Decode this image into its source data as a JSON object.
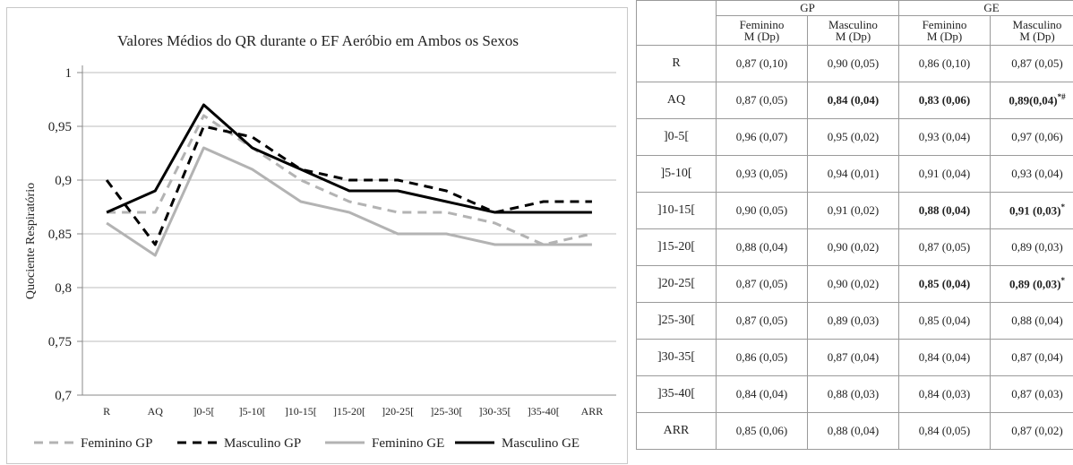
{
  "chart_data": {
    "type": "line",
    "title": "Valores Médios do QR durante o EF Aeróbio em Ambos os Sexos",
    "xlabel": "",
    "ylabel": "Quociente Respiratório",
    "categories": [
      "R",
      "AQ",
      "]0-5[",
      "]5-10[",
      "]10-15[",
      "]15-20[",
      "]20-25[",
      "]25-30[",
      "]30-35[",
      "]35-40[",
      "ARR"
    ],
    "ylim": [
      0.7,
      1
    ],
    "yticks": [
      "0,7",
      "0,75",
      "0,8",
      "0,85",
      "0,9",
      "0,95",
      "1"
    ],
    "grid": "horizontal",
    "legend_position": "bottom",
    "series": [
      {
        "name": "Feminino GP",
        "color": "#b3b3b3",
        "dash": "dashed",
        "values": [
          0.87,
          0.87,
          0.96,
          0.93,
          0.9,
          0.88,
          0.87,
          0.87,
          0.86,
          0.84,
          0.85
        ]
      },
      {
        "name": "Masculino GP",
        "color": "#000000",
        "dash": "dashed",
        "values": [
          0.9,
          0.84,
          0.95,
          0.94,
          0.91,
          0.9,
          0.9,
          0.89,
          0.87,
          0.88,
          0.88
        ]
      },
      {
        "name": "Feminino GE",
        "color": "#b3b3b3",
        "dash": "solid",
        "values": [
          0.86,
          0.83,
          0.93,
          0.91,
          0.88,
          0.87,
          0.85,
          0.85,
          0.84,
          0.84,
          0.84
        ]
      },
      {
        "name": "Masculino GE",
        "color": "#000000",
        "dash": "solid",
        "values": [
          0.87,
          0.89,
          0.97,
          0.93,
          0.91,
          0.89,
          0.89,
          0.88,
          0.87,
          0.87,
          0.87
        ]
      }
    ]
  },
  "table": {
    "groups": [
      "GP",
      "GE"
    ],
    "subheaders": [
      {
        "sex": "Feminino",
        "stat": "M (Dp)"
      },
      {
        "sex": "Masculino",
        "stat": "M (Dp)"
      },
      {
        "sex": "Feminino",
        "stat": "M (Dp)"
      },
      {
        "sex": "Masculino",
        "stat": "M (Dp)"
      }
    ],
    "rows": [
      {
        "label": "R",
        "cells": [
          {
            "text": "0,87 (0,10)",
            "bold": false,
            "mark": ""
          },
          {
            "text": "0,90 (0,05)",
            "bold": false,
            "mark": ""
          },
          {
            "text": "0,86 (0,10)",
            "bold": false,
            "mark": ""
          },
          {
            "text": "0,87 (0,05)",
            "bold": false,
            "mark": ""
          }
        ]
      },
      {
        "label": "AQ",
        "cells": [
          {
            "text": "0,87 (0,05)",
            "bold": false,
            "mark": ""
          },
          {
            "text": "0,84 (0,04)",
            "bold": true,
            "mark": ""
          },
          {
            "text": "0,83 (0,06)",
            "bold": true,
            "mark": ""
          },
          {
            "text": "0,89(0,04)",
            "bold": true,
            "mark": "*#"
          }
        ]
      },
      {
        "label": "]0-5[",
        "cells": [
          {
            "text": "0,96 (0,07)",
            "bold": false,
            "mark": ""
          },
          {
            "text": "0,95 (0,02)",
            "bold": false,
            "mark": ""
          },
          {
            "text": "0,93 (0,04)",
            "bold": false,
            "mark": ""
          },
          {
            "text": "0,97 (0,06)",
            "bold": false,
            "mark": ""
          }
        ]
      },
      {
        "label": "]5-10[",
        "cells": [
          {
            "text": "0,93 (0,05)",
            "bold": false,
            "mark": ""
          },
          {
            "text": "0,94 (0,01)",
            "bold": false,
            "mark": ""
          },
          {
            "text": "0,91 (0,04)",
            "bold": false,
            "mark": ""
          },
          {
            "text": "0,93 (0,04)",
            "bold": false,
            "mark": ""
          }
        ]
      },
      {
        "label": "]10-15[",
        "cells": [
          {
            "text": "0,90 (0,05)",
            "bold": false,
            "mark": ""
          },
          {
            "text": "0,91 (0,02)",
            "bold": false,
            "mark": ""
          },
          {
            "text": "0,88 (0,04)",
            "bold": true,
            "mark": ""
          },
          {
            "text": "0,91 (0,03)",
            "bold": true,
            "mark": "*"
          }
        ]
      },
      {
        "label": "]15-20[",
        "cells": [
          {
            "text": "0,88 (0,04)",
            "bold": false,
            "mark": ""
          },
          {
            "text": "0,90 (0,02)",
            "bold": false,
            "mark": ""
          },
          {
            "text": "0,87 (0,05)",
            "bold": false,
            "mark": ""
          },
          {
            "text": "0,89 (0,03)",
            "bold": false,
            "mark": ""
          }
        ]
      },
      {
        "label": "]20-25[",
        "cells": [
          {
            "text": "0,87 (0,05)",
            "bold": false,
            "mark": ""
          },
          {
            "text": "0,90 (0,02)",
            "bold": false,
            "mark": ""
          },
          {
            "text": "0,85 (0,04)",
            "bold": true,
            "mark": ""
          },
          {
            "text": "0,89 (0,03)",
            "bold": true,
            "mark": "*"
          }
        ]
      },
      {
        "label": "]25-30[",
        "cells": [
          {
            "text": "0,87 (0,05)",
            "bold": false,
            "mark": ""
          },
          {
            "text": "0,89 (0,03)",
            "bold": false,
            "mark": ""
          },
          {
            "text": "0,85 (0,04)",
            "bold": false,
            "mark": ""
          },
          {
            "text": "0,88 (0,04)",
            "bold": false,
            "mark": ""
          }
        ]
      },
      {
        "label": "]30-35[",
        "cells": [
          {
            "text": "0,86 (0,05)",
            "bold": false,
            "mark": ""
          },
          {
            "text": "0,87 (0,04)",
            "bold": false,
            "mark": ""
          },
          {
            "text": "0,84 (0,04)",
            "bold": false,
            "mark": ""
          },
          {
            "text": "0,87 (0,04)",
            "bold": false,
            "mark": ""
          }
        ]
      },
      {
        "label": "]35-40[",
        "cells": [
          {
            "text": "0,84 (0,04)",
            "bold": false,
            "mark": ""
          },
          {
            "text": "0,88 (0,03)",
            "bold": false,
            "mark": ""
          },
          {
            "text": "0,84 (0,03)",
            "bold": false,
            "mark": ""
          },
          {
            "text": "0,87 (0,03)",
            "bold": false,
            "mark": ""
          }
        ]
      },
      {
        "label": "ARR",
        "cells": [
          {
            "text": "0,85 (0,06)",
            "bold": false,
            "mark": ""
          },
          {
            "text": "0,88 (0,04)",
            "bold": false,
            "mark": ""
          },
          {
            "text": "0,84 (0,05)",
            "bold": false,
            "mark": ""
          },
          {
            "text": "0,87 (0,02)",
            "bold": false,
            "mark": ""
          }
        ]
      }
    ]
  }
}
